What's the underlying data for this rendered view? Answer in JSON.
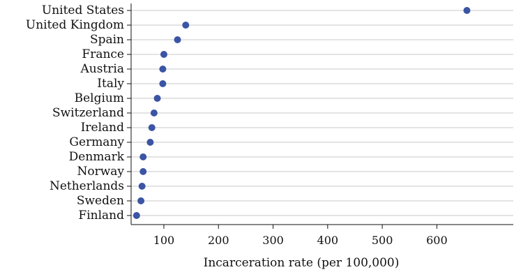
{
  "chart_data": {
    "type": "scatter",
    "title": "",
    "xlabel": "Incarceration rate (per 100,000)",
    "ylabel": "",
    "xlim": [
      40,
      740
    ],
    "xticks": [
      100,
      200,
      300,
      400,
      500,
      600
    ],
    "grid": "horizontal",
    "legend": "none",
    "point_color": "#3B55A4",
    "categories": [
      "United States",
      "United Kingdom",
      "Spain",
      "France",
      "Austria",
      "Italy",
      "Belgium",
      "Switzerland",
      "Ireland",
      "Germany",
      "Denmark",
      "Norway",
      "Netherlands",
      "Sweden",
      "Finland"
    ],
    "values": [
      655,
      140,
      125,
      100,
      98,
      98,
      88,
      82,
      78,
      75,
      62,
      62,
      60,
      58,
      50
    ]
  }
}
